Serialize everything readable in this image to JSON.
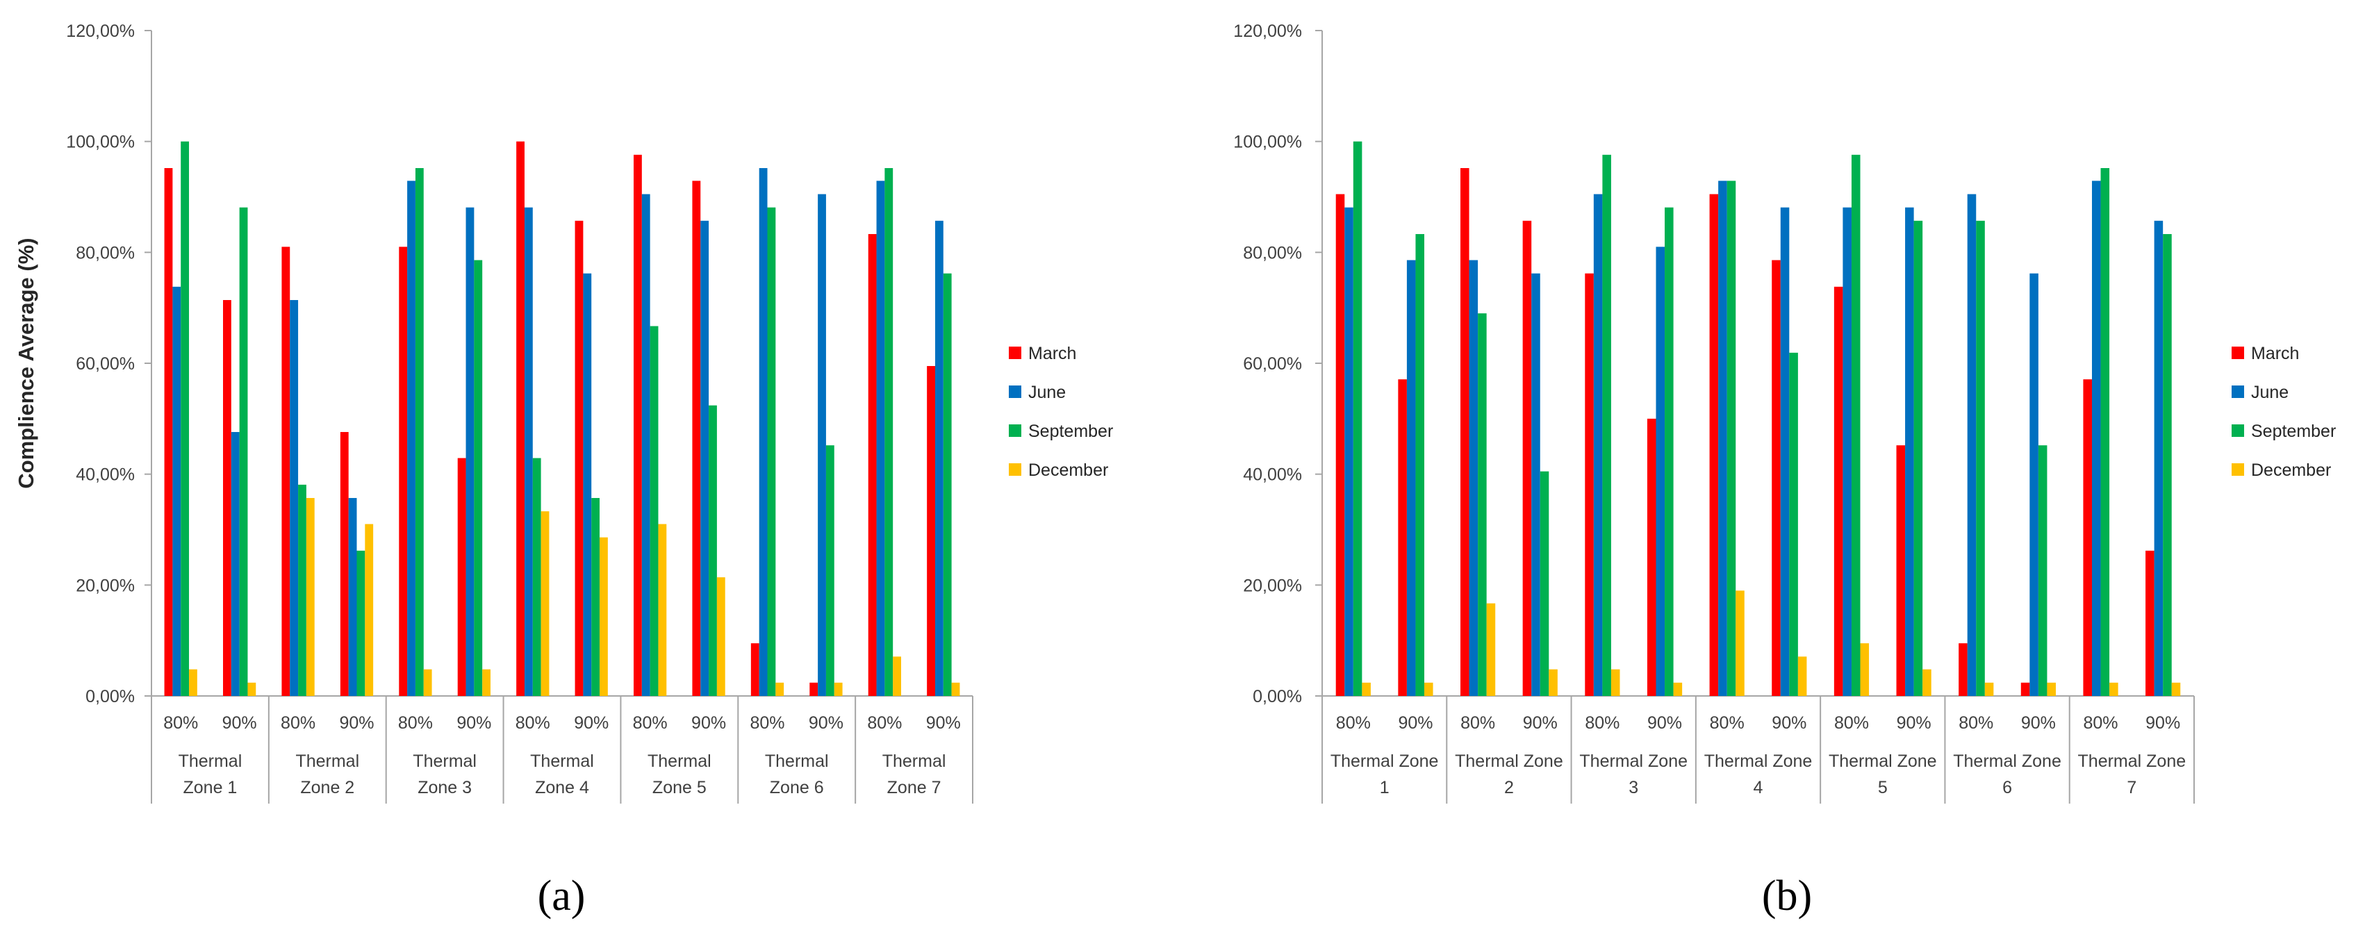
{
  "chart_data": [
    {
      "type": "bar",
      "panel_label": "(a)",
      "ylabel": "Complience  Average (%)",
      "ylim": [
        0,
        120
      ],
      "yticks": [
        "0,00%",
        "20,00%",
        "40,00%",
        "60,00%",
        "80,00%",
        "100,00%",
        "120,00%"
      ],
      "categories": [
        "80%",
        "90%",
        "80%",
        "90%",
        "80%",
        "90%",
        "80%",
        "90%",
        "80%",
        "90%",
        "80%",
        "90%",
        "80%",
        "90%"
      ],
      "groups": [
        {
          "label_lines": [
            "Thermal",
            "Zone 1"
          ]
        },
        {
          "label_lines": [
            "Thermal",
            "Zone 2"
          ]
        },
        {
          "label_lines": [
            "Thermal",
            "Zone 3"
          ]
        },
        {
          "label_lines": [
            "Thermal",
            "Zone 4"
          ]
        },
        {
          "label_lines": [
            "Thermal",
            "Zone 5"
          ]
        },
        {
          "label_lines": [
            "Thermal",
            "Zone 6"
          ]
        },
        {
          "label_lines": [
            "Thermal",
            "Zone 7"
          ]
        }
      ],
      "legend_position": "right",
      "series": [
        {
          "name": "March",
          "color": "#ff0000",
          "values": [
            95.2,
            71.4,
            81.0,
            47.6,
            81.0,
            42.9,
            100.0,
            85.7,
            97.6,
            92.9,
            9.5,
            2.4,
            83.3,
            59.5
          ]
        },
        {
          "name": "June",
          "color": "#0070c0",
          "values": [
            73.8,
            47.6,
            71.4,
            35.7,
            92.9,
            88.1,
            88.1,
            76.2,
            90.5,
            85.7,
            95.2,
            90.5,
            92.9,
            85.7
          ]
        },
        {
          "name": "September",
          "color": "#00b050",
          "values": [
            100.0,
            88.1,
            38.1,
            26.2,
            95.2,
            78.6,
            42.9,
            35.7,
            66.7,
            52.4,
            88.1,
            45.2,
            95.2,
            76.2
          ]
        },
        {
          "name": "December",
          "color": "#ffc000",
          "values": [
            4.8,
            2.4,
            35.7,
            31.0,
            4.8,
            4.8,
            33.3,
            28.6,
            31.0,
            21.4,
            2.4,
            2.4,
            7.1,
            2.4
          ]
        }
      ]
    },
    {
      "type": "bar",
      "panel_label": "(b)",
      "ylabel": "",
      "ylim": [
        0,
        120
      ],
      "yticks": [
        "0,00%",
        "20,00%",
        "40,00%",
        "60,00%",
        "80,00%",
        "100,00%",
        "120,00%"
      ],
      "categories": [
        "80%",
        "90%",
        "80%",
        "90%",
        "80%",
        "90%",
        "80%",
        "90%",
        "80%",
        "90%",
        "80%",
        "90%",
        "80%",
        "90%"
      ],
      "groups": [
        {
          "label_lines": [
            "Thermal Zone",
            "1"
          ]
        },
        {
          "label_lines": [
            "Thermal Zone",
            "2"
          ]
        },
        {
          "label_lines": [
            "Thermal Zone",
            "3"
          ]
        },
        {
          "label_lines": [
            "Thermal Zone",
            "4"
          ]
        },
        {
          "label_lines": [
            "Thermal Zone",
            "5"
          ]
        },
        {
          "label_lines": [
            "Thermal Zone",
            "6"
          ]
        },
        {
          "label_lines": [
            "Thermal Zone",
            "7"
          ]
        }
      ],
      "legend_position": "right",
      "series": [
        {
          "name": "March",
          "color": "#ff0000",
          "values": [
            90.5,
            57.1,
            95.2,
            85.7,
            76.2,
            50.0,
            90.5,
            78.6,
            73.8,
            45.2,
            9.5,
            2.4,
            57.1,
            26.2
          ]
        },
        {
          "name": "June",
          "color": "#0070c0",
          "values": [
            88.1,
            78.6,
            78.6,
            76.2,
            90.5,
            81.0,
            92.9,
            88.1,
            88.1,
            88.1,
            90.5,
            76.2,
            92.9,
            85.7
          ]
        },
        {
          "name": "September",
          "color": "#00b050",
          "values": [
            100.0,
            83.3,
            69.0,
            40.5,
            97.6,
            88.1,
            92.9,
            61.9,
            97.6,
            85.7,
            85.7,
            45.2,
            95.2,
            83.3
          ]
        },
        {
          "name": "December",
          "color": "#ffc000",
          "values": [
            2.4,
            2.4,
            16.7,
            4.8,
            4.8,
            2.4,
            19.0,
            7.1,
            9.5,
            4.8,
            2.4,
            2.4,
            2.4,
            2.4
          ]
        }
      ]
    }
  ]
}
